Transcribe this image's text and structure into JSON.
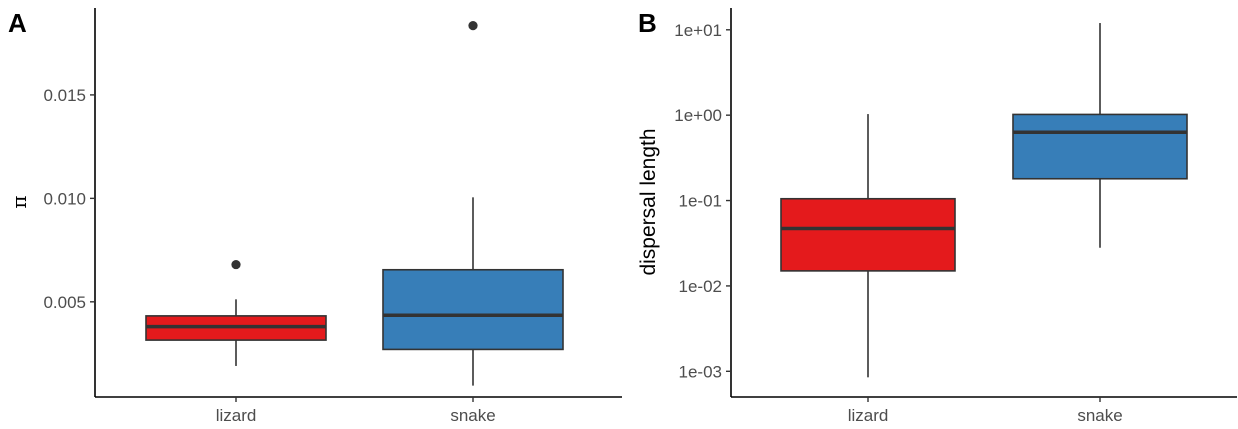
{
  "chart_data": [
    {
      "type": "boxplot",
      "panel_label": "A",
      "ylabel": "π",
      "categories": [
        "lizard",
        "snake"
      ],
      "yticks": [
        "0.005",
        "0.010",
        "0.015"
      ],
      "ytick_values": [
        0.005,
        0.01,
        0.015
      ],
      "ylim": [
        0.0004,
        0.0192
      ],
      "boxes": [
        {
          "category": "lizard",
          "color": "#E41A1C",
          "whisker_low": 0.0019,
          "q1": 0.00315,
          "median": 0.0038,
          "q3": 0.00432,
          "whisker_high": 0.00512,
          "outliers": [
            0.0068
          ]
        },
        {
          "category": "snake",
          "color": "#377EB8",
          "whisker_low": 0.00095,
          "q1": 0.0027,
          "median": 0.00435,
          "q3": 0.00655,
          "whisker_high": 0.01005,
          "outliers": [
            0.01835
          ]
        }
      ]
    },
    {
      "type": "boxplot",
      "panel_label": "B",
      "ylabel": "dispersal length",
      "yscale": "log10",
      "categories": [
        "lizard",
        "snake"
      ],
      "yticks": [
        "1e-03",
        "1e-02",
        "1e-01",
        "1e+00",
        "1e+01"
      ],
      "ytick_values": [
        0.001,
        0.01,
        0.1,
        1,
        10
      ],
      "ylim": [
        0.0005,
        18
      ],
      "boxes": [
        {
          "category": "lizard",
          "color": "#E41A1C",
          "whisker_low": 0.00085,
          "q1": 0.015,
          "median": 0.047,
          "q3": 0.105,
          "whisker_high": 1.03,
          "outliers": []
        },
        {
          "category": "snake",
          "color": "#377EB8",
          "whisker_low": 0.028,
          "q1": 0.18,
          "median": 0.63,
          "q3": 1.02,
          "whisker_high": 12,
          "outliers": []
        }
      ]
    }
  ]
}
